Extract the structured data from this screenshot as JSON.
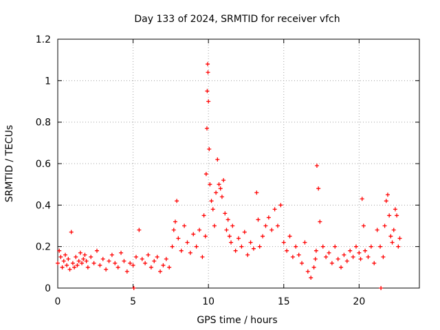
{
  "chart_data": {
    "type": "scatter",
    "title": "Day 133 of 2024, SRMTID for receiver vfch",
    "xlabel": "GPS time / hours",
    "ylabel": "SRMTID / TECUs",
    "xlim": [
      0,
      24
    ],
    "ylim": [
      0,
      1.2
    ],
    "xticks": [
      0,
      5,
      10,
      15,
      20
    ],
    "xtick_labels": [
      "0",
      "5",
      "10",
      "15",
      "20"
    ],
    "yticks": [
      0,
      0.2,
      0.4,
      0.6,
      0.8,
      1,
      1.2
    ],
    "ytick_labels": [
      "0",
      "0.2",
      "0.4",
      "0.6",
      "0.8",
      "1",
      "1.2"
    ],
    "grid": true,
    "marker": "+",
    "series": [
      {
        "name": "SRMTID",
        "color": "#ff0000",
        "x": [
          0.0,
          0.1,
          0.2,
          0.3,
          0.4,
          0.5,
          0.6,
          0.7,
          0.8,
          0.9,
          1.0,
          1.1,
          1.2,
          1.3,
          1.4,
          1.5,
          1.6,
          1.7,
          1.8,
          1.9,
          2.0,
          2.2,
          2.4,
          2.6,
          2.8,
          3.0,
          3.2,
          3.4,
          3.6,
          3.8,
          4.0,
          4.2,
          4.4,
          4.6,
          4.8,
          5.0,
          5.2,
          5.4,
          5.6,
          5.8,
          6.0,
          6.2,
          6.4,
          6.6,
          6.8,
          7.0,
          7.2,
          7.4,
          7.6,
          7.7,
          7.8,
          7.9,
          8.0,
          8.2,
          8.4,
          8.6,
          8.8,
          9.0,
          9.2,
          9.4,
          9.6,
          9.7,
          9.8,
          9.85,
          9.9,
          9.92,
          9.95,
          9.97,
          10.0,
          10.05,
          10.1,
          10.2,
          10.3,
          10.4,
          10.5,
          10.6,
          10.7,
          10.8,
          10.9,
          11.0,
          11.1,
          11.2,
          11.3,
          11.4,
          11.5,
          11.6,
          11.8,
          12.0,
          12.2,
          12.4,
          12.6,
          12.8,
          13.0,
          13.2,
          13.3,
          13.4,
          13.6,
          13.8,
          14.0,
          14.2,
          14.4,
          14.6,
          14.8,
          15.0,
          15.2,
          15.4,
          15.6,
          15.8,
          16.0,
          16.2,
          16.4,
          16.6,
          16.8,
          17.0,
          17.1,
          17.15,
          17.2,
          17.3,
          17.4,
          17.6,
          17.8,
          18.0,
          18.2,
          18.4,
          18.6,
          18.8,
          19.0,
          19.2,
          19.4,
          19.6,
          19.8,
          20.0,
          20.1,
          20.2,
          20.3,
          20.4,
          20.6,
          20.8,
          21.0,
          21.2,
          21.4,
          21.6,
          21.7,
          21.8,
          21.9,
          22.0,
          22.1,
          22.2,
          22.3,
          22.4,
          22.5,
          22.6,
          22.7,
          5.05,
          21.45
        ],
        "y": [
          0.12,
          0.18,
          0.15,
          0.1,
          0.13,
          0.16,
          0.11,
          0.14,
          0.09,
          0.27,
          0.12,
          0.1,
          0.15,
          0.11,
          0.13,
          0.17,
          0.12,
          0.14,
          0.16,
          0.13,
          0.1,
          0.15,
          0.12,
          0.18,
          0.11,
          0.14,
          0.09,
          0.13,
          0.16,
          0.12,
          0.1,
          0.17,
          0.13,
          0.08,
          0.12,
          0.11,
          0.15,
          0.28,
          0.14,
          0.12,
          0.16,
          0.1,
          0.13,
          0.15,
          0.08,
          0.11,
          0.14,
          0.1,
          0.2,
          0.28,
          0.32,
          0.42,
          0.24,
          0.18,
          0.3,
          0.22,
          0.17,
          0.26,
          0.2,
          0.28,
          0.15,
          0.35,
          0.25,
          0.55,
          0.77,
          0.95,
          1.08,
          1.04,
          0.9,
          0.67,
          0.5,
          0.42,
          0.38,
          0.3,
          0.46,
          0.62,
          0.5,
          0.48,
          0.44,
          0.52,
          0.36,
          0.28,
          0.33,
          0.25,
          0.22,
          0.3,
          0.18,
          0.24,
          0.2,
          0.27,
          0.16,
          0.22,
          0.19,
          0.46,
          0.33,
          0.2,
          0.25,
          0.3,
          0.34,
          0.28,
          0.38,
          0.3,
          0.4,
          0.22,
          0.18,
          0.25,
          0.15,
          0.2,
          0.16,
          0.12,
          0.22,
          0.08,
          0.05,
          0.1,
          0.14,
          0.18,
          0.59,
          0.48,
          0.32,
          0.2,
          0.15,
          0.17,
          0.12,
          0.2,
          0.14,
          0.1,
          0.16,
          0.13,
          0.18,
          0.15,
          0.2,
          0.17,
          0.14,
          0.43,
          0.3,
          0.18,
          0.15,
          0.2,
          0.12,
          0.28,
          0.2,
          0.15,
          0.3,
          0.42,
          0.45,
          0.35,
          0.25,
          0.22,
          0.28,
          0.38,
          0.35,
          0.2,
          0.24,
          0.0,
          0.0
        ]
      }
    ]
  }
}
